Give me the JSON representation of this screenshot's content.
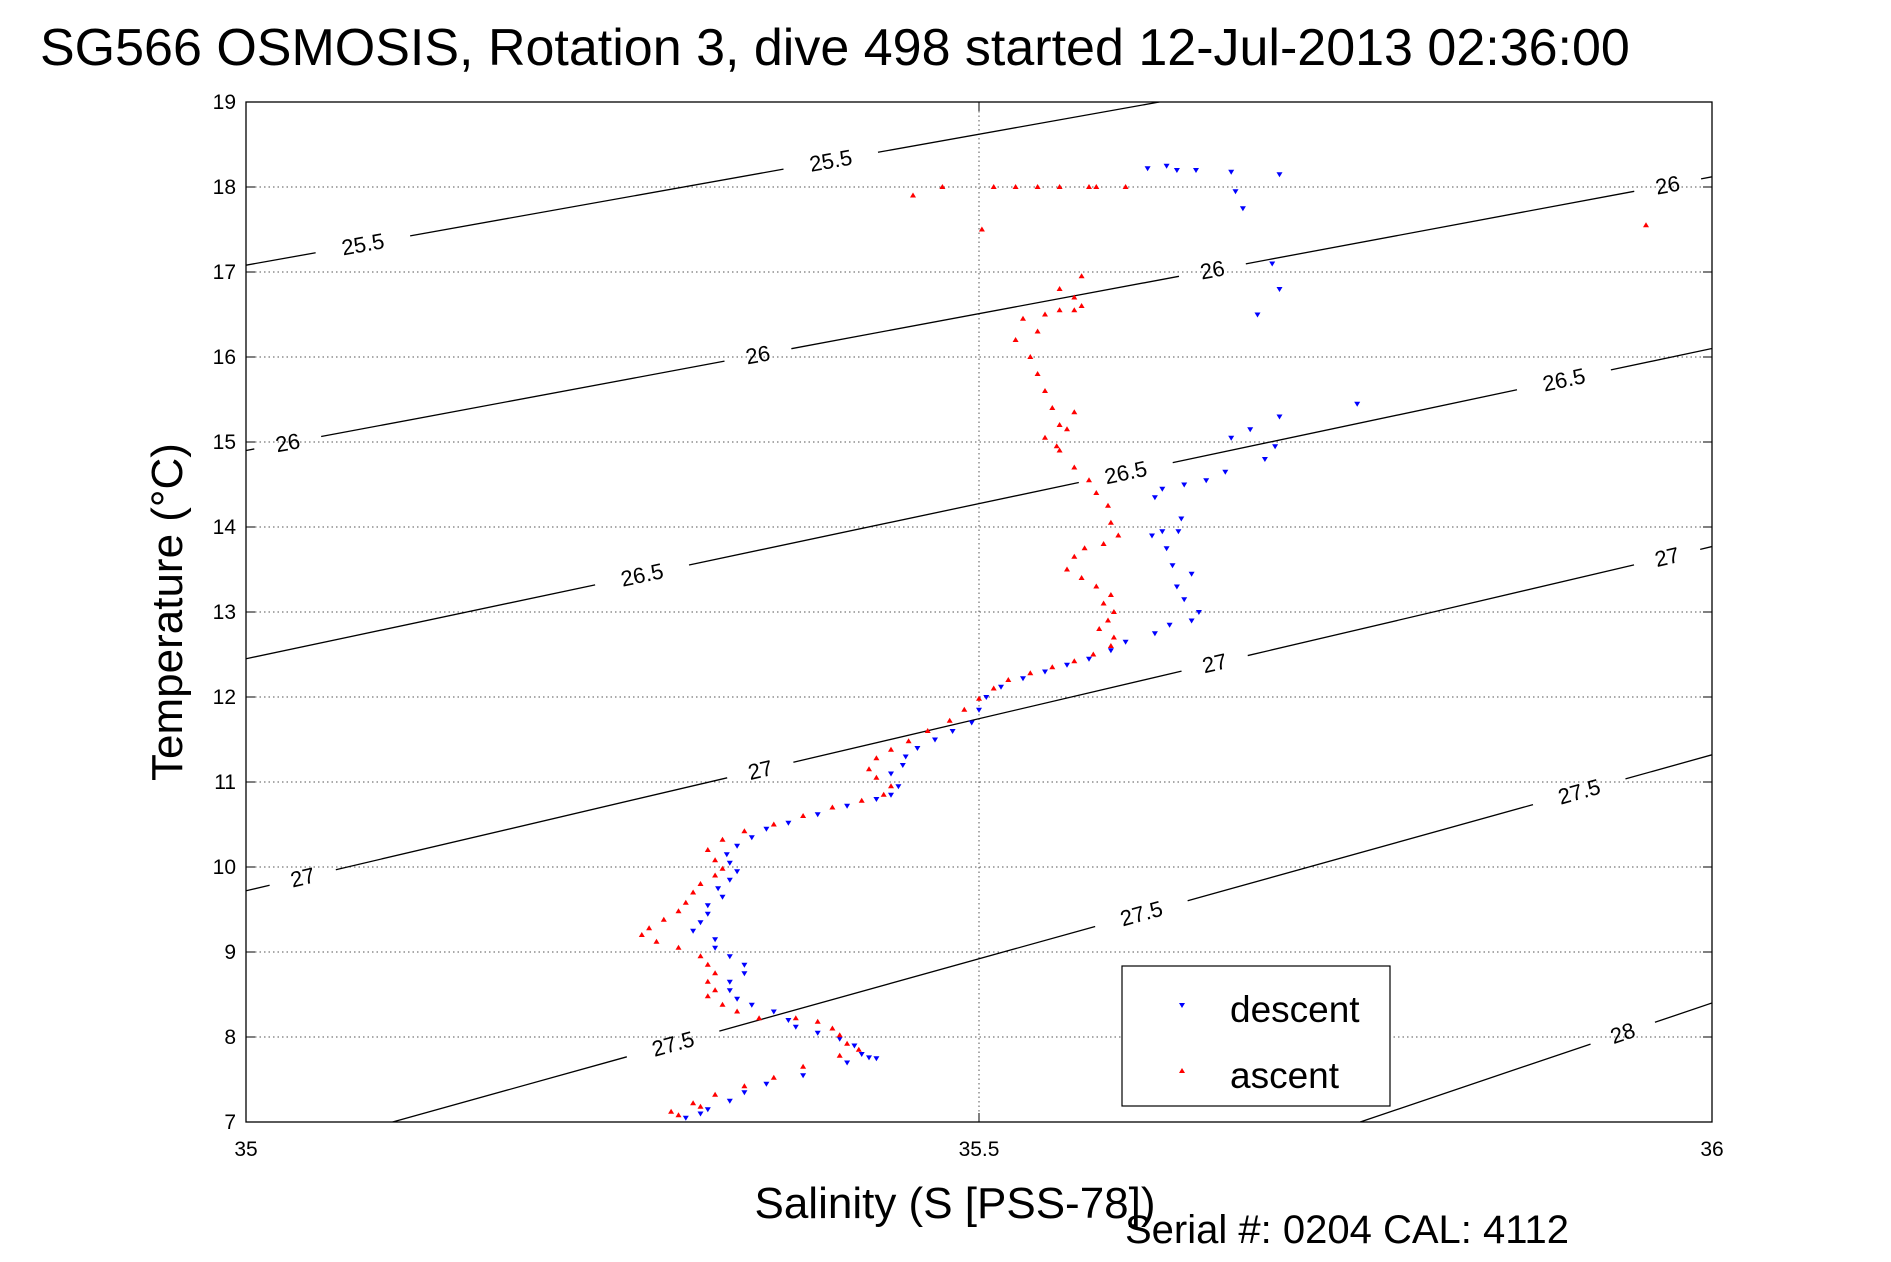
{
  "chart_data": {
    "type": "scatter",
    "title": "SG566 OSMOSIS, Rotation 3, dive 498 started 12-Jul-2013 02:36:00",
    "xlabel": "Salinity (S [PSS-78])",
    "ylabel": "Temperature (°C)",
    "xlim": [
      35,
      36
    ],
    "ylim": [
      7,
      19
    ],
    "x_ticks": [
      35,
      35.5,
      36
    ],
    "x_tick_labels": [
      "35",
      "35.5",
      "36"
    ],
    "y_ticks": [
      7,
      8,
      9,
      10,
      11,
      12,
      13,
      14,
      15,
      16,
      17,
      18,
      19
    ],
    "y_tick_labels": [
      "7",
      "8",
      "9",
      "10",
      "11",
      "12",
      "13",
      "14",
      "15",
      "16",
      "17",
      "18",
      "19"
    ],
    "grid": true,
    "legend_position": "bottom-center",
    "annotation": "Serial #: 0204  CAL: 4112",
    "density_contours": [
      {
        "sigma": 25.5,
        "label": "25.5",
        "points": [
          [
            35,
            17.08
          ],
          [
            35.623,
            19.0
          ]
        ],
        "label_positions": [
          [
            35.08,
            17.3
          ],
          [
            35.4,
            18.2
          ]
        ]
      },
      {
        "sigma": 26.0,
        "label": "26",
        "points": [
          [
            35,
            14.9
          ],
          [
            36,
            18.12
          ]
        ],
        "label_positions": [
          [
            35.03,
            14.85
          ],
          [
            35.35,
            15.95
          ],
          [
            35.66,
            16.95
          ],
          [
            35.97,
            18.0
          ]
        ]
      },
      {
        "sigma": 26.5,
        "label": "26.5",
        "points": [
          [
            35,
            12.45
          ],
          [
            36,
            16.1
          ]
        ],
        "label_positions": [
          [
            35.27,
            13.45
          ],
          [
            35.6,
            14.65
          ],
          [
            35.9,
            15.65
          ]
        ]
      },
      {
        "sigma": 27.0,
        "label": "27",
        "points": [
          [
            35,
            9.72
          ],
          [
            36,
            13.77
          ]
        ],
        "label_positions": [
          [
            35.04,
            9.78
          ],
          [
            35.35,
            11.2
          ],
          [
            35.66,
            12.45
          ],
          [
            35.97,
            13.6
          ]
        ]
      },
      {
        "sigma": 27.5,
        "label": "27.5",
        "points": [
          [
            35.1,
            7.0
          ],
          [
            36,
            11.32
          ]
        ],
        "label_positions": [
          [
            35.29,
            8.0
          ],
          [
            35.61,
            9.5
          ],
          [
            35.91,
            10.85
          ]
        ]
      },
      {
        "sigma": 28.0,
        "label": "28",
        "points": [
          [
            35.76,
            7.0
          ],
          [
            36,
            8.4
          ]
        ],
        "label_positions": [
          [
            35.94,
            8.0
          ]
        ]
      }
    ],
    "series": [
      {
        "name": "descent",
        "color": "#0000ff",
        "marker": "triangle-down",
        "points": [
          [
            35.615,
            18.22
          ],
          [
            35.628,
            18.25
          ],
          [
            35.635,
            18.2
          ],
          [
            35.648,
            18.2
          ],
          [
            35.672,
            18.18
          ],
          [
            35.705,
            18.15
          ],
          [
            35.675,
            17.95
          ],
          [
            35.68,
            17.75
          ],
          [
            35.7,
            17.1
          ],
          [
            35.705,
            16.8
          ],
          [
            35.69,
            16.5
          ],
          [
            35.758,
            15.45
          ],
          [
            35.705,
            15.3
          ],
          [
            35.685,
            15.15
          ],
          [
            35.672,
            15.05
          ],
          [
            35.702,
            14.95
          ],
          [
            35.695,
            14.8
          ],
          [
            35.668,
            14.65
          ],
          [
            35.655,
            14.55
          ],
          [
            35.64,
            14.5
          ],
          [
            35.625,
            14.45
          ],
          [
            35.62,
            14.35
          ],
          [
            35.638,
            14.1
          ],
          [
            35.636,
            13.95
          ],
          [
            35.625,
            13.95
          ],
          [
            35.618,
            13.9
          ],
          [
            35.628,
            13.75
          ],
          [
            35.632,
            13.55
          ],
          [
            35.645,
            13.45
          ],
          [
            35.635,
            13.3
          ],
          [
            35.64,
            13.15
          ],
          [
            35.65,
            13.0
          ],
          [
            35.645,
            12.9
          ],
          [
            35.63,
            12.85
          ],
          [
            35.62,
            12.75
          ],
          [
            35.6,
            12.65
          ],
          [
            35.59,
            12.55
          ],
          [
            35.575,
            12.45
          ],
          [
            35.56,
            12.38
          ],
          [
            35.545,
            12.3
          ],
          [
            35.53,
            12.22
          ],
          [
            35.515,
            12.12
          ],
          [
            35.505,
            12.0
          ],
          [
            35.5,
            11.85
          ],
          [
            35.495,
            11.7
          ],
          [
            35.482,
            11.6
          ],
          [
            35.47,
            11.5
          ],
          [
            35.458,
            11.4
          ],
          [
            35.45,
            11.3
          ],
          [
            35.448,
            11.2
          ],
          [
            35.44,
            11.1
          ],
          [
            35.445,
            10.95
          ],
          [
            35.44,
            10.85
          ],
          [
            35.43,
            10.8
          ],
          [
            35.41,
            10.72
          ],
          [
            35.39,
            10.62
          ],
          [
            35.37,
            10.52
          ],
          [
            35.355,
            10.45
          ],
          [
            35.345,
            10.35
          ],
          [
            35.335,
            10.25
          ],
          [
            35.328,
            10.15
          ],
          [
            35.33,
            10.05
          ],
          [
            35.335,
            9.95
          ],
          [
            35.33,
            9.85
          ],
          [
            35.322,
            9.75
          ],
          [
            35.325,
            9.65
          ],
          [
            35.315,
            9.55
          ],
          [
            35.315,
            9.45
          ],
          [
            35.31,
            9.35
          ],
          [
            35.305,
            9.25
          ],
          [
            35.32,
            9.15
          ],
          [
            35.32,
            9.05
          ],
          [
            35.33,
            8.95
          ],
          [
            35.34,
            8.85
          ],
          [
            35.34,
            8.75
          ],
          [
            35.33,
            8.65
          ],
          [
            35.33,
            8.55
          ],
          [
            35.335,
            8.45
          ],
          [
            35.345,
            8.38
          ],
          [
            35.36,
            8.3
          ],
          [
            35.37,
            8.2
          ],
          [
            35.375,
            8.12
          ],
          [
            35.39,
            8.05
          ],
          [
            35.405,
            7.98
          ],
          [
            35.415,
            7.9
          ],
          [
            35.42,
            7.8
          ],
          [
            35.425,
            7.76
          ],
          [
            35.43,
            7.75
          ],
          [
            35.41,
            7.7
          ],
          [
            35.38,
            7.55
          ],
          [
            35.355,
            7.45
          ],
          [
            35.34,
            7.35
          ],
          [
            35.33,
            7.25
          ],
          [
            35.315,
            7.15
          ],
          [
            35.3,
            7.05
          ],
          [
            35.31,
            7.1
          ]
        ]
      },
      {
        "name": "ascent",
        "color": "#ff0000",
        "marker": "triangle-up",
        "points": [
          [
            35.955,
            17.55
          ],
          [
            35.455,
            17.9
          ],
          [
            35.475,
            18.0
          ],
          [
            35.51,
            18.0
          ],
          [
            35.525,
            18.0
          ],
          [
            35.54,
            18.0
          ],
          [
            35.555,
            18.0
          ],
          [
            35.575,
            18.0
          ],
          [
            35.58,
            18.0
          ],
          [
            35.6,
            18.0
          ],
          [
            35.502,
            17.5
          ],
          [
            35.555,
            16.8
          ],
          [
            35.57,
            16.95
          ],
          [
            35.565,
            16.7
          ],
          [
            35.555,
            16.55
          ],
          [
            35.545,
            16.5
          ],
          [
            35.53,
            16.45
          ],
          [
            35.525,
            16.2
          ],
          [
            35.54,
            16.3
          ],
          [
            35.565,
            16.55
          ],
          [
            35.57,
            16.6
          ],
          [
            35.535,
            16.0
          ],
          [
            35.54,
            15.8
          ],
          [
            35.545,
            15.6
          ],
          [
            35.55,
            15.4
          ],
          [
            35.555,
            15.2
          ],
          [
            35.545,
            15.05
          ],
          [
            35.553,
            14.95
          ],
          [
            35.56,
            15.15
          ],
          [
            35.565,
            15.35
          ],
          [
            35.555,
            14.9
          ],
          [
            35.565,
            14.7
          ],
          [
            35.575,
            14.55
          ],
          [
            35.58,
            14.4
          ],
          [
            35.588,
            14.25
          ],
          [
            35.59,
            14.05
          ],
          [
            35.595,
            13.9
          ],
          [
            35.585,
            13.8
          ],
          [
            35.572,
            13.75
          ],
          [
            35.565,
            13.65
          ],
          [
            35.56,
            13.5
          ],
          [
            35.57,
            13.4
          ],
          [
            35.58,
            13.3
          ],
          [
            35.59,
            13.2
          ],
          [
            35.585,
            13.1
          ],
          [
            35.592,
            13.0
          ],
          [
            35.588,
            12.9
          ],
          [
            35.582,
            12.8
          ],
          [
            35.592,
            12.7
          ],
          [
            35.59,
            12.6
          ],
          [
            35.578,
            12.5
          ],
          [
            35.565,
            12.42
          ],
          [
            35.55,
            12.35
          ],
          [
            35.535,
            12.28
          ],
          [
            35.52,
            12.2
          ],
          [
            35.51,
            12.1
          ],
          [
            35.5,
            11.98
          ],
          [
            35.49,
            11.85
          ],
          [
            35.48,
            11.72
          ],
          [
            35.465,
            11.6
          ],
          [
            35.452,
            11.48
          ],
          [
            35.44,
            11.38
          ],
          [
            35.43,
            11.28
          ],
          [
            35.425,
            11.15
          ],
          [
            35.43,
            11.05
          ],
          [
            35.44,
            10.95
          ],
          [
            35.435,
            10.85
          ],
          [
            35.42,
            10.78
          ],
          [
            35.4,
            10.7
          ],
          [
            35.38,
            10.6
          ],
          [
            35.36,
            10.5
          ],
          [
            35.34,
            10.42
          ],
          [
            35.325,
            10.32
          ],
          [
            35.315,
            10.2
          ],
          [
            35.32,
            10.08
          ],
          [
            35.325,
            9.98
          ],
          [
            35.32,
            9.9
          ],
          [
            35.31,
            9.8
          ],
          [
            35.305,
            9.7
          ],
          [
            35.3,
            9.58
          ],
          [
            35.295,
            9.48
          ],
          [
            35.285,
            9.38
          ],
          [
            35.275,
            9.28
          ],
          [
            35.27,
            9.2
          ],
          [
            35.28,
            9.12
          ],
          [
            35.295,
            9.05
          ],
          [
            35.31,
            8.95
          ],
          [
            35.315,
            8.85
          ],
          [
            35.32,
            8.75
          ],
          [
            35.315,
            8.65
          ],
          [
            35.32,
            8.55
          ],
          [
            35.315,
            8.48
          ],
          [
            35.325,
            8.38
          ],
          [
            35.335,
            8.3
          ],
          [
            35.35,
            8.22
          ],
          [
            35.375,
            8.22
          ],
          [
            35.39,
            8.18
          ],
          [
            35.4,
            8.1
          ],
          [
            35.405,
            8.02
          ],
          [
            35.41,
            7.92
          ],
          [
            35.418,
            7.85
          ],
          [
            35.405,
            7.78
          ],
          [
            35.38,
            7.65
          ],
          [
            35.36,
            7.52
          ],
          [
            35.34,
            7.42
          ],
          [
            35.32,
            7.32
          ],
          [
            35.305,
            7.22
          ],
          [
            35.29,
            7.12
          ],
          [
            35.31,
            7.18
          ],
          [
            35.295,
            7.08
          ]
        ]
      }
    ]
  }
}
